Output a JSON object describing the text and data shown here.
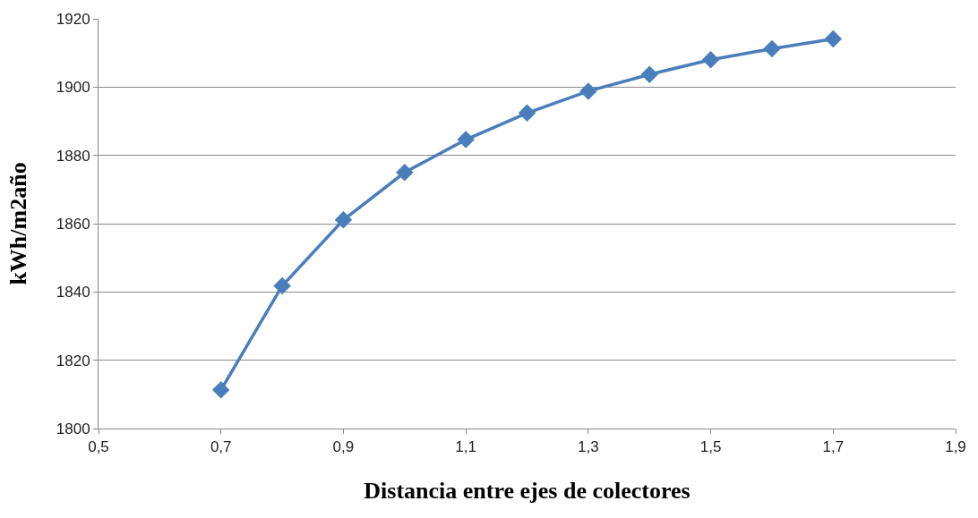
{
  "chart_data": {
    "type": "line",
    "xlabel": "Distancia entre ejes de colectores",
    "ylabel": "kWh/m2año",
    "x": [
      0.7,
      0.8,
      0.9,
      1.0,
      1.1,
      1.2,
      1.3,
      1.4,
      1.5,
      1.6,
      1.7
    ],
    "series": [
      {
        "color": "#4a7ebb",
        "values": [
          1811.3,
          1841.8,
          1861.1,
          1875.0,
          1884.6,
          1892.4,
          1898.8,
          1903.7,
          1908.0,
          1911.2,
          1914.1
        ]
      }
    ],
    "xlim": [
      0.5,
      1.9
    ],
    "xticks": [
      {
        "value": 0.5,
        "label": "0,5"
      },
      {
        "value": 0.7,
        "label": "0,7"
      },
      {
        "value": 0.9,
        "label": "0,9"
      },
      {
        "value": 1.1,
        "label": "1,1"
      },
      {
        "value": 1.3,
        "label": "1,3"
      },
      {
        "value": 1.5,
        "label": "1,5"
      },
      {
        "value": 1.7,
        "label": "1,7"
      },
      {
        "value": 1.9,
        "label": "1,9"
      }
    ],
    "ylim": [
      1800,
      1920
    ],
    "yticks": [
      1800,
      1820,
      1840,
      1860,
      1880,
      1900,
      1920
    ],
    "grid": "y",
    "marker": "diamond",
    "line_style": "solid"
  }
}
